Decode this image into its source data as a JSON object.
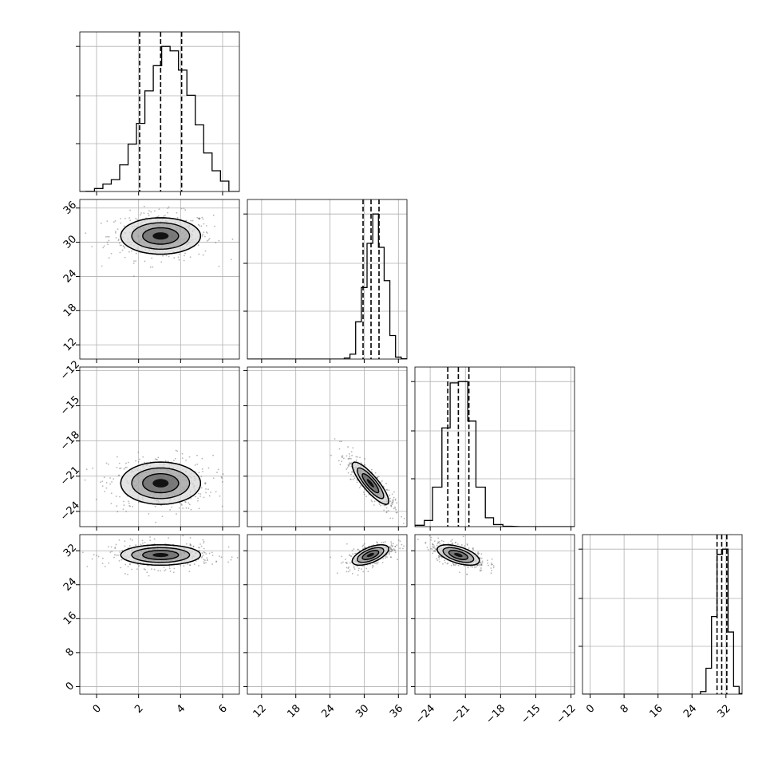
{
  "chart_data": {
    "type": "corner",
    "title": "",
    "params": [
      {
        "range": [
          -0.8,
          6.8
        ],
        "ticks": [
          0,
          2,
          4,
          6
        ],
        "tick_labels": [
          "0",
          "2",
          "4",
          "6"
        ],
        "mean": 3.05,
        "std": 0.95,
        "quantiles": [
          2.05,
          3.05,
          4.05
        ]
      },
      {
        "range": [
          9.5,
          37.5
        ],
        "ticks": [
          12,
          18,
          24,
          30,
          36
        ],
        "tick_labels": [
          "12",
          "18",
          "24",
          "30",
          "36"
        ],
        "mean": 31.1,
        "std": 1.6,
        "quantiles": [
          29.8,
          31.2,
          32.6
        ]
      },
      {
        "range": [
          -25.3,
          -11.7
        ],
        "ticks": [
          -24,
          -21,
          -18,
          -15,
          -12
        ],
        "tick_labels": [
          "−24",
          "−21",
          "−18",
          "−15",
          "−12"
        ],
        "mean": -21.6,
        "std": 0.9,
        "quantiles": [
          -22.5,
          -21.6,
          -20.7
        ]
      },
      {
        "range": [
          -1.8,
          35.8
        ],
        "ticks": [
          0,
          8,
          16,
          24,
          32
        ],
        "tick_labels": [
          "0",
          "8",
          "16",
          "24",
          "32"
        ],
        "mean": 31.0,
        "std": 1.2,
        "quantiles": [
          29.9,
          31.0,
          32.2
        ]
      }
    ],
    "hist_1d": [
      {
        "bins": [
          -0.5,
          -0.1,
          0.3,
          0.7,
          1.1,
          1.5,
          1.9,
          2.3,
          2.7,
          3.1,
          3.5,
          3.9,
          4.3,
          4.7,
          5.1,
          5.5,
          5.9
        ],
        "counts": [
          0.1,
          2,
          5,
          8,
          18,
          32,
          46,
          68,
          85,
          98,
          95,
          82,
          65,
          45,
          26,
          14,
          7
        ]
      },
      {
        "bins": [
          26.5,
          27.5,
          28.5,
          29.5,
          30.5,
          31.5,
          32.5,
          33.5,
          34.5,
          35.5,
          36.5
        ],
        "counts": [
          1,
          5,
          38,
          73,
          118,
          148,
          114,
          80,
          24,
          2,
          0.3
        ]
      },
      {
        "bins": [
          -25.3,
          -24.5,
          -23.8,
          -23.0,
          -22.3,
          -21.6,
          -20.8,
          -20.1,
          -19.3,
          -18.6,
          -17.8,
          -17.1
        ],
        "counts": [
          2,
          9,
          58,
          145,
          211,
          213,
          155,
          58,
          13,
          3,
          0.5
        ]
      },
      {
        "bins": [
          26.0,
          27.3,
          28.6,
          29.9,
          31.2,
          32.5,
          33.8,
          35.1
        ],
        "counts": [
          2,
          20,
          60,
          108,
          112,
          48,
          6,
          0.5
        ]
      }
    ],
    "pairs": [
      {
        "x": 0,
        "y": 1,
        "center": [
          3.05,
          31.1
        ],
        "spread": [
          0.95,
          1.6
        ],
        "correlation": 0.0
      },
      {
        "x": 0,
        "y": 2,
        "center": [
          3.05,
          -21.6
        ],
        "spread": [
          0.95,
          0.9
        ],
        "correlation": 0.0
      },
      {
        "x": 0,
        "y": 3,
        "center": [
          3.05,
          31.0
        ],
        "spread": [
          0.95,
          1.2
        ],
        "correlation": 0.0
      },
      {
        "x": 1,
        "y": 2,
        "center": [
          31.1,
          -21.6
        ],
        "spread": [
          1.6,
          0.9
        ],
        "correlation": -0.85
      },
      {
        "x": 1,
        "y": 3,
        "center": [
          31.1,
          31.0
        ],
        "spread": [
          1.6,
          1.2
        ],
        "correlation": 0.6
      },
      {
        "x": 2,
        "y": 3,
        "center": [
          -21.6,
          31.0
        ],
        "spread": [
          0.9,
          1.2
        ],
        "correlation": -0.55
      }
    ],
    "grid": true,
    "colors": {
      "line": "#000000",
      "grid": "#b0b0b0",
      "points": "#5a5a5a"
    }
  }
}
